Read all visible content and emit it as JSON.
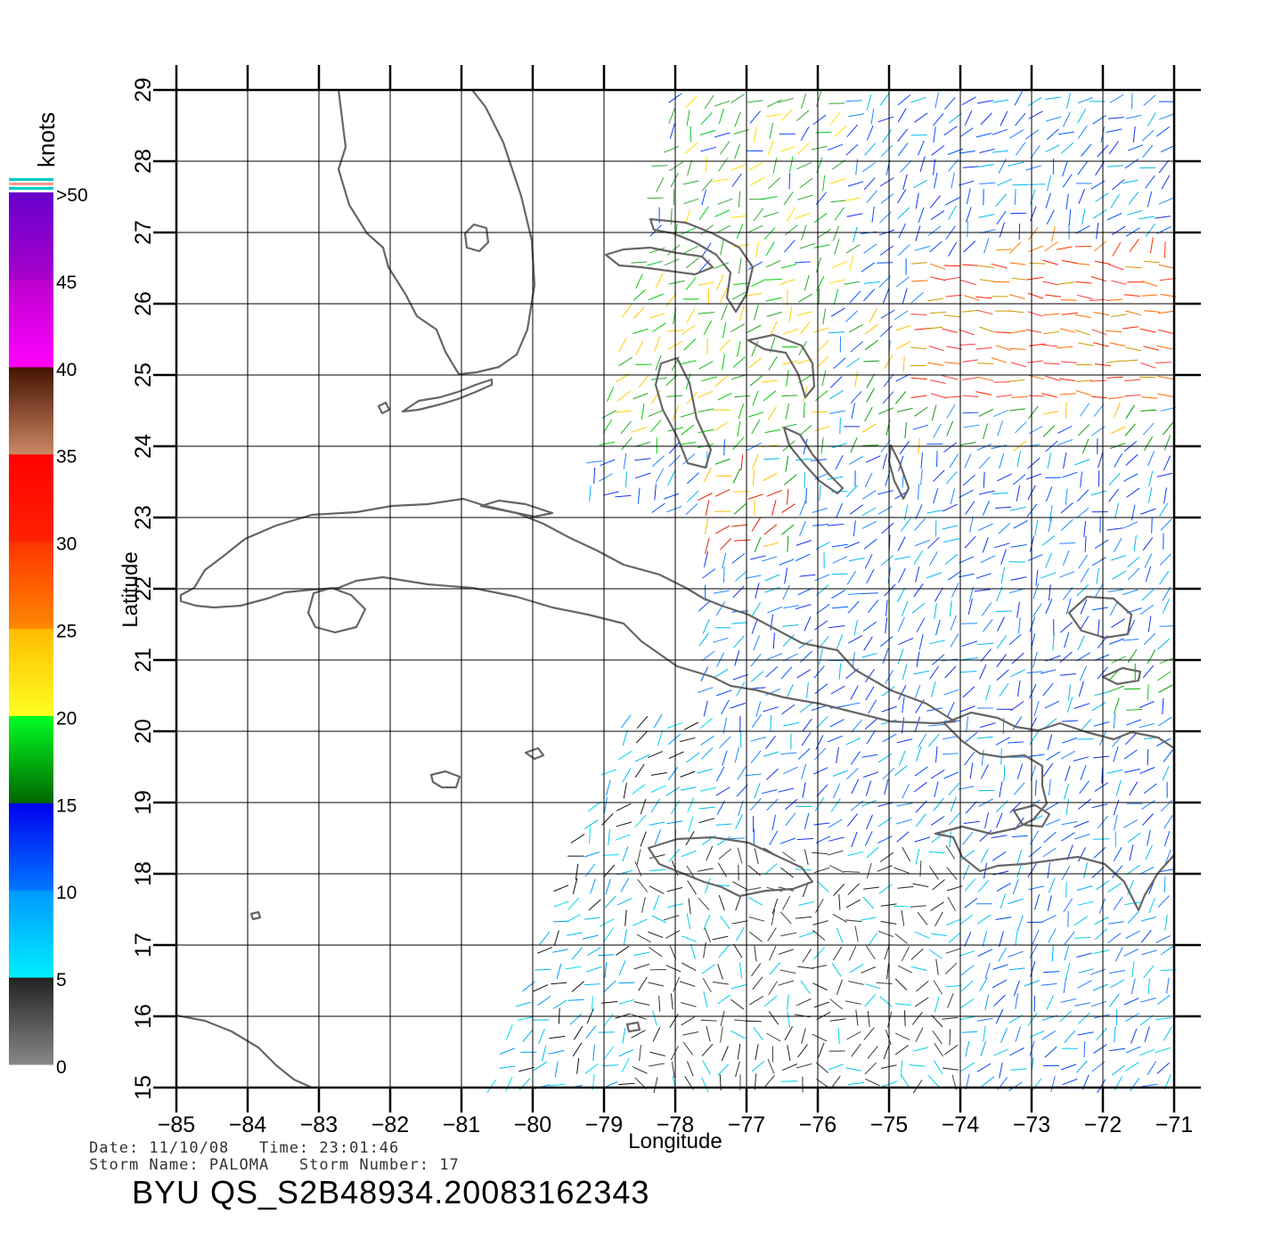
{
  "colorbar": {
    "units_label": "knots",
    "ticks": [
      {
        "value": 0,
        "label": "0"
      },
      {
        "value": 5,
        "label": "5"
      },
      {
        "value": 10,
        "label": "10"
      },
      {
        "value": 15,
        "label": "15"
      },
      {
        "value": 20,
        "label": "20"
      },
      {
        "value": 25,
        "label": "25"
      },
      {
        "value": 30,
        "label": "30"
      },
      {
        "value": 35,
        "label": "35"
      },
      {
        "value": 40,
        "label": "40"
      },
      {
        "value": 45,
        "label": "45"
      },
      {
        "value": 50,
        "label": ">50"
      }
    ],
    "bands": [
      {
        "from": 0,
        "to": 5,
        "colors": [
          "#888888",
          "#222222"
        ]
      },
      {
        "from": 5,
        "to": 10,
        "colors": [
          "#00eeff",
          "#0099ff"
        ]
      },
      {
        "from": 10,
        "to": 15,
        "colors": [
          "#0077ff",
          "#0000ee"
        ]
      },
      {
        "from": 15,
        "to": 20,
        "colors": [
          "#006600",
          "#00ff22"
        ]
      },
      {
        "from": 20,
        "to": 25,
        "colors": [
          "#ffff22",
          "#ffbb00"
        ]
      },
      {
        "from": 25,
        "to": 30,
        "colors": [
          "#ff8800",
          "#ff3300"
        ]
      },
      {
        "from": 30,
        "to": 35,
        "colors": [
          "#ff2200",
          "#ff0000"
        ]
      },
      {
        "from": 35,
        "to": 40,
        "colors": [
          "#cc8866",
          "#441100"
        ]
      },
      {
        "from": 40,
        "to": 45,
        "colors": [
          "#ff00ff",
          "#bb00cc"
        ]
      },
      {
        "from": 45,
        "to": 50,
        "colors": [
          "#aa00cc",
          "#6600cc"
        ]
      }
    ],
    "cap_colors": [
      "#00cccc",
      "#ff9999",
      "#00cccc"
    ]
  },
  "map": {
    "lon_ticks": [
      -85,
      -84,
      -83,
      -82,
      -81,
      -80,
      -79,
      -78,
      -77,
      -76,
      -75,
      -74,
      -73,
      -72,
      -71
    ],
    "lon_labels": [
      "−85",
      "−84",
      "−83",
      "−82",
      "−81",
      "−80",
      "−79",
      "−78",
      "−77",
      "−76",
      "−75",
      "−74",
      "−73",
      "−72",
      "−71"
    ],
    "lat_ticks": [
      15,
      16,
      17,
      18,
      19,
      20,
      21,
      22,
      23,
      24,
      25,
      26,
      27,
      28,
      29
    ],
    "lat_labels": [
      "15",
      "16",
      "17",
      "18",
      "19",
      "20",
      "21",
      "22",
      "23",
      "24",
      "25",
      "26",
      "27",
      "28",
      "29"
    ],
    "xlabel": "Longitude",
    "ylabel": "Latitude",
    "lon_range": [
      -85,
      -71
    ],
    "lat_range": [
      15,
      29
    ],
    "coast_color": "#666666",
    "grid_color": "#000000"
  },
  "info": {
    "line1": "Date: 11/10/08   Time: 23:01:46",
    "line2": "Storm Name: PALOMA   Storm Number: 17",
    "product": "BYU QS_S2B48934.20083162343"
  }
}
